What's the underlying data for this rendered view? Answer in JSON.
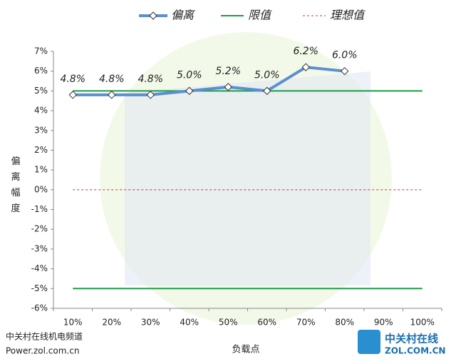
{
  "chart_data": {
    "type": "line",
    "categories": [
      "10%",
      "20%",
      "30%",
      "40%",
      "50%",
      "60%",
      "70%",
      "80%",
      "90%",
      "100%"
    ],
    "series": [
      {
        "name": "偏离",
        "color": "#5b8fd0",
        "values": [
          4.8,
          4.8,
          4.8,
          5.0,
          5.2,
          5.0,
          6.2,
          6.0,
          null,
          null
        ],
        "value_labels": [
          "4.8%",
          "4.8%",
          "4.8%",
          "5.0%",
          "5.2%",
          "5.0%",
          "6.2%",
          "6.0%",
          null,
          null
        ]
      }
    ],
    "reference_lines": [
      {
        "name": "限值",
        "color": "#1e9a4a",
        "values": [
          5,
          -5
        ],
        "dashed": false
      },
      {
        "name": "理想值",
        "color": "#c0392b",
        "values": [
          0
        ],
        "dashed": true
      }
    ],
    "ylim": [
      -6,
      7
    ],
    "yticks": [
      {
        "value": -6,
        "label": "-6%"
      },
      {
        "value": -5,
        "label": "-5%"
      },
      {
        "value": -4,
        "label": "-4%"
      },
      {
        "value": -3,
        "label": "-3%"
      },
      {
        "value": -2,
        "label": "-2%"
      },
      {
        "value": -1,
        "label": "-1%"
      },
      {
        "value": 0,
        "label": "0%"
      },
      {
        "value": 1,
        "label": "1%"
      },
      {
        "value": 2,
        "label": "2%"
      },
      {
        "value": 3,
        "label": "3%"
      },
      {
        "value": 4,
        "label": "4%"
      },
      {
        "value": 5,
        "label": "5%"
      },
      {
        "value": 6,
        "label": "6%"
      },
      {
        "value": 7,
        "label": "7%"
      }
    ],
    "y_label": "偏离幅度",
    "x_label": "负载点",
    "grid": false
  },
  "watermark": {
    "source": "中关村在线机电频道",
    "url": "Power.zol.com.cn",
    "logo_name": "中关村在线",
    "logo_url": "ZOL.COM.CN"
  }
}
